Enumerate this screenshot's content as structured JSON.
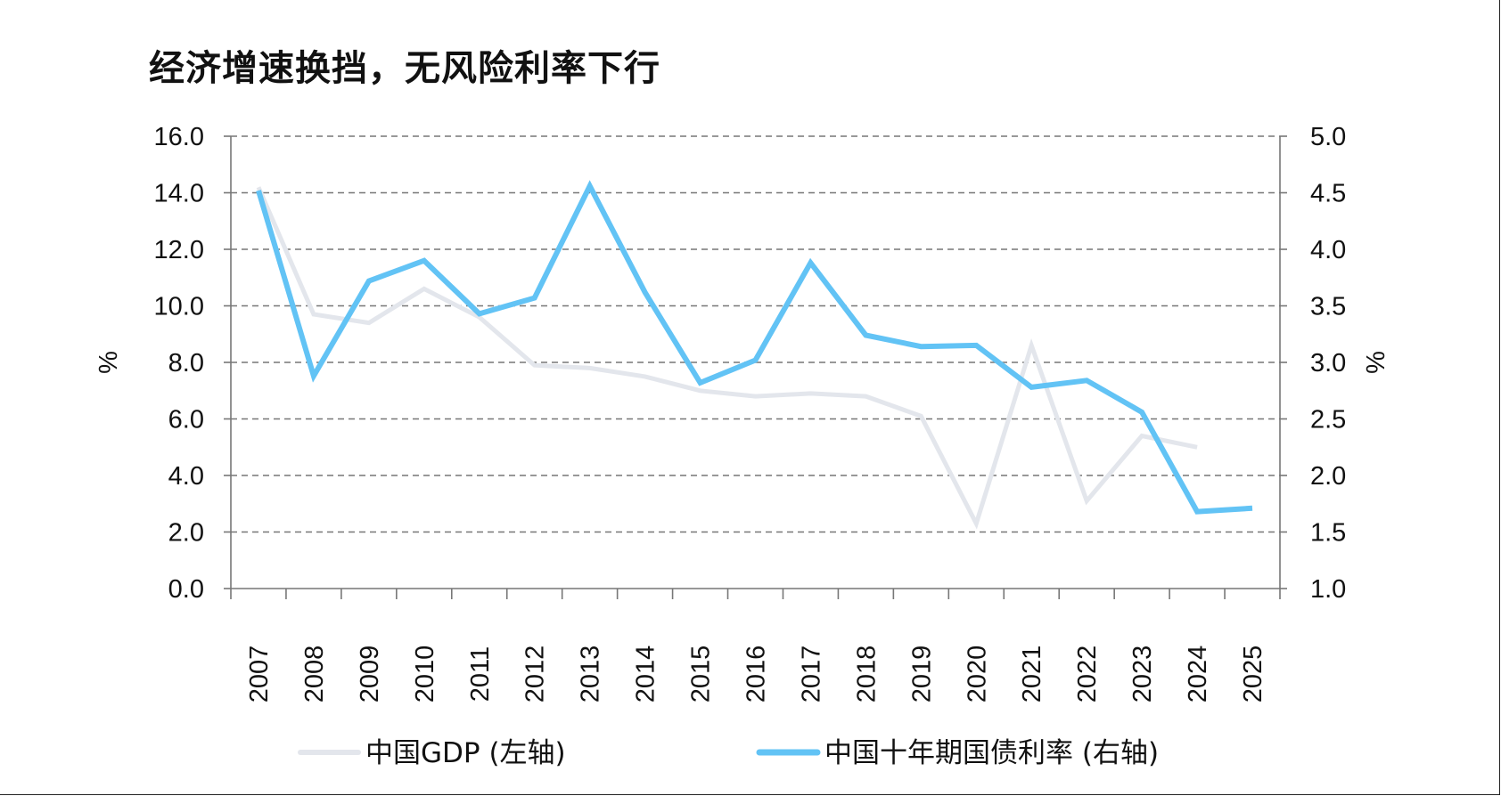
{
  "title": "经济增速换挡，无风险利率下行",
  "colors": {
    "gdp": "#e3e6ec",
    "yield": "#62c3f5",
    "grid": "#777777",
    "axis": "#777777"
  },
  "chart_data": {
    "type": "line",
    "title": "经济增速换挡，无风险利率下行",
    "categories": [
      "2007",
      "2008",
      "2009",
      "2010",
      "2011",
      "2012",
      "2013",
      "2014",
      "2015",
      "2016",
      "2017",
      "2018",
      "2019",
      "2020",
      "2021",
      "2022",
      "2023",
      "2024",
      "2025"
    ],
    "y_left": {
      "label": "%",
      "lim": [
        0,
        16
      ],
      "ticks": [
        "0.0",
        "2.0",
        "4.0",
        "6.0",
        "8.0",
        "10.0",
        "12.0",
        "14.0",
        "16.0"
      ]
    },
    "y_right": {
      "label": "%",
      "lim": [
        1.0,
        5.0
      ],
      "ticks": [
        "1.0",
        "1.5",
        "2.0",
        "2.5",
        "3.0",
        "3.5",
        "4.0",
        "4.5",
        "5.0"
      ]
    },
    "grid": true,
    "legend_position": "bottom",
    "series": [
      {
        "name": "中国GDP (左轴)",
        "axis": "left",
        "color": "#e3e6ec",
        "values": [
          14.2,
          9.7,
          9.4,
          10.6,
          9.6,
          7.9,
          7.8,
          7.5,
          7.0,
          6.8,
          6.9,
          6.8,
          6.1,
          2.3,
          8.6,
          3.1,
          5.4,
          5.0,
          null
        ]
      },
      {
        "name": "中国十年期国债利率 (右轴)",
        "axis": "right",
        "color": "#62c3f5",
        "values": [
          4.52,
          2.88,
          3.72,
          3.9,
          3.43,
          3.57,
          4.56,
          3.62,
          2.82,
          3.02,
          3.88,
          3.24,
          3.14,
          3.15,
          2.78,
          2.84,
          2.56,
          1.68,
          1.71
        ]
      }
    ]
  }
}
